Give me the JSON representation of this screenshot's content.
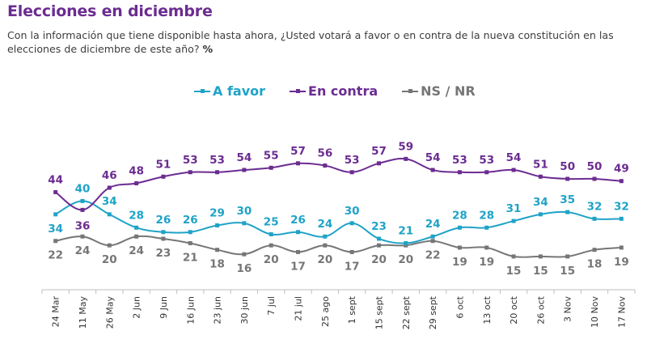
{
  "header": {
    "title": "Elecciones en diciembre",
    "subtitle": "Con la información que tiene disponible hasta ahora, ¿Usted votará a favor o en contra de la nueva constitución en las elecciones de diciembre de este año?",
    "subtitle_unit": "%"
  },
  "chart_data": {
    "type": "line",
    "title": "Elecciones en diciembre",
    "xlabel": "",
    "ylabel": "%",
    "ylim": [
      0,
      60
    ],
    "grid": false,
    "legend_position": "top-center",
    "categories": [
      "24 Mar",
      "11 May",
      "26 May",
      "2 Jun",
      "9 Jun",
      "16 Jun",
      "23 jun",
      "30 jun",
      "7 jul",
      "21 jul",
      "25 ago",
      "1 sept",
      "15 sept",
      "22 sept",
      "29 sept",
      "6 oct",
      "13 oct",
      "20 oct",
      "26 oct",
      "3 Nov",
      "10 Nov",
      "17 Nov"
    ],
    "series": [
      {
        "name": "A favor",
        "color": "#1fa3c7",
        "label_pos": "above",
        "values": [
          34,
          40,
          34,
          28,
          26,
          26,
          29,
          30,
          25,
          26,
          24,
          30,
          23,
          21,
          24,
          28,
          28,
          31,
          34,
          35,
          32,
          32
        ]
      },
      {
        "name": "En contra",
        "color": "#6b2c91",
        "label_pos": "above",
        "values": [
          44,
          36,
          46,
          48,
          51,
          53,
          53,
          54,
          55,
          57,
          56,
          53,
          57,
          59,
          54,
          53,
          53,
          54,
          51,
          50,
          50,
          49
        ]
      },
      {
        "name": "NS / NR",
        "color": "#767676",
        "label_pos": "below",
        "values": [
          22,
          24,
          20,
          24,
          23,
          21,
          18,
          16,
          20,
          17,
          20,
          17,
          20,
          20,
          22,
          19,
          19,
          15,
          15,
          15,
          18,
          19
        ]
      }
    ]
  }
}
